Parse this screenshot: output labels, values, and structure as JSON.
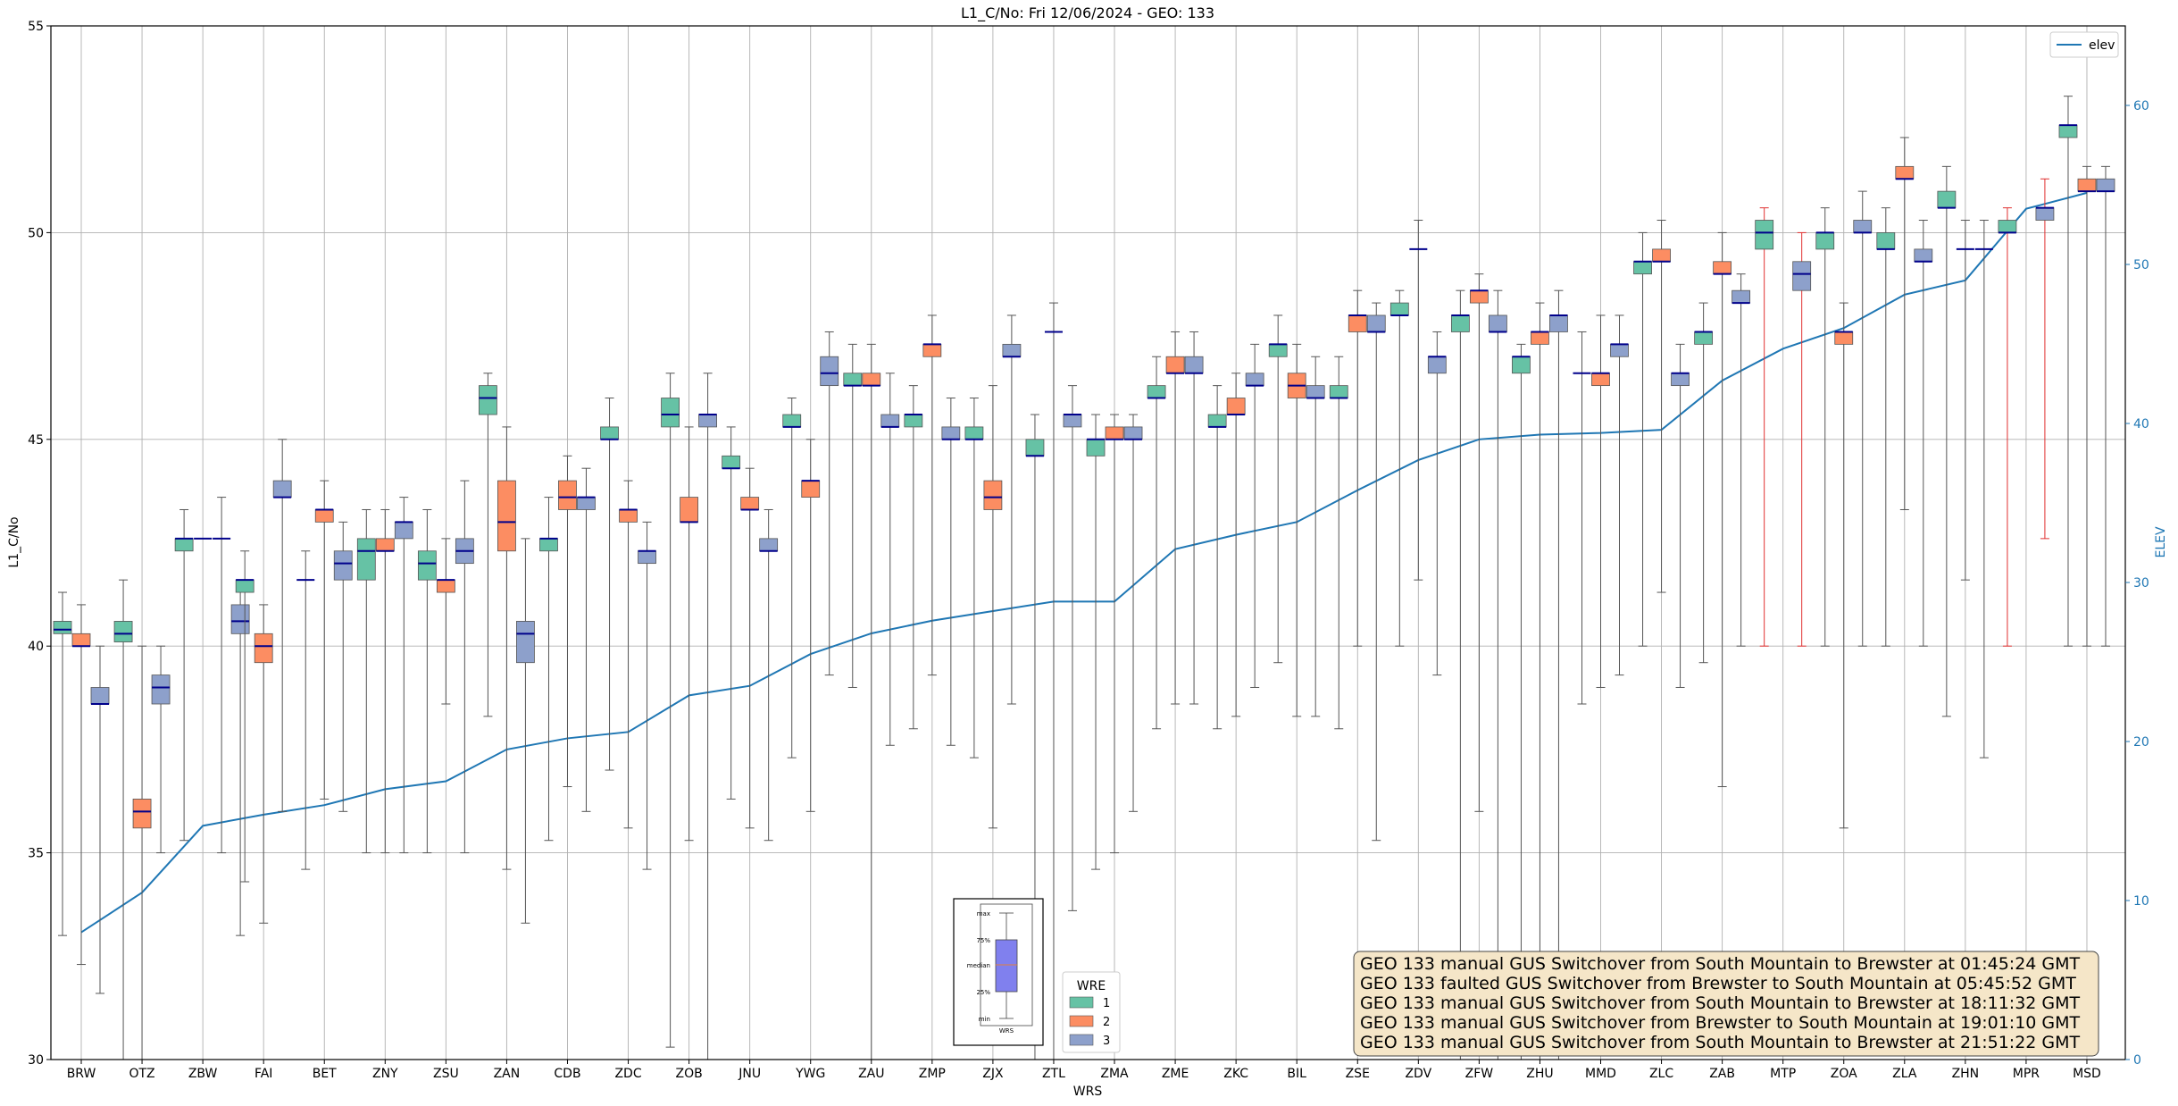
{
  "chart_data": {
    "type": "box",
    "title": "L1_C/No: Fri 12/06/2024 - GEO: 133",
    "xlabel": "WRS",
    "ylabel": "L1_C/No",
    "y2label": "ELEV",
    "ylim": [
      30,
      55
    ],
    "y2lim": [
      0,
      65
    ],
    "yticks": [
      "30",
      "35",
      "40",
      "45",
      "50",
      "55"
    ],
    "y2ticks": [
      "0",
      "10",
      "20",
      "30",
      "40",
      "50",
      "60"
    ],
    "grid": true,
    "stations": [
      "BRW",
      "OTZ",
      "ZBW",
      "FAI",
      "BET",
      "ZNY",
      "ZSU",
      "ZAN",
      "CDB",
      "ZDC",
      "ZOB",
      "JNU",
      "YWG",
      "ZAU",
      "ZMP",
      "ZJX",
      "ZTL",
      "ZMA",
      "ZME",
      "ZKC",
      "BIL",
      "ZSE",
      "ZDV",
      "ZFW",
      "ZHU",
      "MMD",
      "ZLC",
      "ZAB",
      "MTP",
      "ZOA",
      "ZLA",
      "ZHN",
      "MPR",
      "MSD"
    ],
    "elev_series": {
      "name": "elev",
      "color": "#1f77b4",
      "values": [
        8,
        10.5,
        14.7,
        15.4,
        16,
        17,
        17.5,
        19.5,
        20.2,
        20.6,
        22.9,
        23.5,
        25.5,
        26.8,
        27.6,
        28.2,
        28.8,
        28.8,
        32.1,
        33.0,
        33.8,
        35.8,
        37.7,
        39,
        39.3,
        39.4,
        39.6,
        42.7,
        44.7,
        46.0,
        48.1,
        49,
        53.5,
        54.5
      ]
    },
    "wre_legend": {
      "title": "WRE",
      "entries": [
        {
          "label": "1",
          "color": "#66c2a5"
        },
        {
          "label": "2",
          "color": "#fc8d62"
        },
        {
          "label": "3",
          "color": "#8da0cb"
        }
      ]
    },
    "series_legend": {
      "label": "elev"
    },
    "box_key": {
      "labels": [
        "max",
        "75%",
        "median",
        "25%",
        "min"
      ],
      "xlabel": "WRS"
    },
    "boxes": [
      {
        "wrs": "BRW",
        "wre": 1,
        "q1": 40.3,
        "med": 40.4,
        "q3": 40.6,
        "min": 33,
        "max": 41.3
      },
      {
        "wrs": "BRW",
        "wre": 2,
        "q1": 40,
        "med": 40,
        "q3": 40.3,
        "min": 32.3,
        "max": 41
      },
      {
        "wrs": "BRW",
        "wre": 3,
        "q1": 38.6,
        "med": 38.6,
        "q3": 39,
        "min": 31.6,
        "max": 40
      },
      {
        "wrs": "OTZ",
        "wre": 1,
        "q1": 40.1,
        "med": 40.3,
        "q3": 40.6,
        "min": 30,
        "max": 41.6
      },
      {
        "wrs": "OTZ",
        "wre": 2,
        "q1": 35.6,
        "med": 36,
        "q3": 36.3,
        "min": 30,
        "max": 40
      },
      {
        "wrs": "OTZ",
        "wre": 3,
        "q1": 38.6,
        "med": 39,
        "q3": 39.3,
        "min": 35,
        "max": 40
      },
      {
        "wrs": "ZBW",
        "wre": 1,
        "q1": 42.3,
        "med": 42.6,
        "q3": 42.6,
        "min": 35.3,
        "max": 43.3
      },
      {
        "wrs": "ZBW",
        "wre": 2,
        "q1": null,
        "med": 42.6,
        "q3": null,
        "min": null,
        "max": null
      },
      {
        "wrs": "ZBW",
        "wre": 3,
        "q1": null,
        "med": 42.6,
        "q3": null,
        "min": 35,
        "max": 43.6
      },
      {
        "wrs": "ZBW",
        "wre": 3,
        "q1": 40.3,
        "med": 40.6,
        "q3": 41,
        "min": 33,
        "max": 41.6
      },
      {
        "wrs": "FAI",
        "wre": 1,
        "q1": 41.3,
        "med": 41.6,
        "q3": 41.6,
        "min": 34.3,
        "max": 42.3
      },
      {
        "wrs": "FAI",
        "wre": 2,
        "q1": 39.6,
        "med": 40,
        "q3": 40.3,
        "min": 33.3,
        "max": 41
      },
      {
        "wrs": "FAI",
        "wre": 3,
        "q1": 43.6,
        "med": 43.6,
        "q3": 44,
        "min": 36,
        "max": 45
      },
      {
        "wrs": "BET",
        "wre": 1,
        "q1": null,
        "med": 41.6,
        "q3": null,
        "min": 34.6,
        "max": 42.3
      },
      {
        "wrs": "BET",
        "wre": 2,
        "q1": 43,
        "med": 43.3,
        "q3": 43.3,
        "min": 36.3,
        "max": 44
      },
      {
        "wrs": "BET",
        "wre": 3,
        "q1": 41.6,
        "med": 42,
        "q3": 42.3,
        "min": 36,
        "max": 43
      },
      {
        "wrs": "ZNY",
        "wre": 1,
        "q1": 41.6,
        "med": 42.3,
        "q3": 42.6,
        "min": 35,
        "max": 43.3
      },
      {
        "wrs": "ZNY",
        "wre": 2,
        "q1": 42.3,
        "med": 42.3,
        "q3": 42.6,
        "min": 35,
        "max": 43.3
      },
      {
        "wrs": "ZNY",
        "wre": 3,
        "q1": 42.6,
        "med": 43,
        "q3": 43,
        "min": 35,
        "max": 43.6
      },
      {
        "wrs": "ZSU",
        "wre": 1,
        "q1": 41.6,
        "med": 42,
        "q3": 42.3,
        "min": 35,
        "max": 43.3
      },
      {
        "wrs": "ZSU",
        "wre": 2,
        "q1": 41.3,
        "med": 41.6,
        "q3": 41.6,
        "min": 38.6,
        "max": 42.6
      },
      {
        "wrs": "ZSU",
        "wre": 3,
        "q1": 42,
        "med": 42.3,
        "q3": 42.6,
        "min": 35,
        "max": 44
      },
      {
        "wrs": "ZAN",
        "wre": 1,
        "q1": 45.6,
        "med": 46,
        "q3": 46.3,
        "min": 38.3,
        "max": 46.6
      },
      {
        "wrs": "ZAN",
        "wre": 2,
        "q1": 42.3,
        "med": 43,
        "q3": 44,
        "min": 34.6,
        "max": 45.3
      },
      {
        "wrs": "ZAN",
        "wre": 3,
        "q1": 39.6,
        "med": 40.3,
        "q3": 40.6,
        "min": 33.3,
        "max": 42.6
      },
      {
        "wrs": "CDB",
        "wre": 1,
        "q1": 42.3,
        "med": 42.6,
        "q3": 42.6,
        "min": 35.3,
        "max": 43.6
      },
      {
        "wrs": "CDB",
        "wre": 2,
        "q1": 43.3,
        "med": 43.6,
        "q3": 44,
        "min": 36.6,
        "max": 44.6
      },
      {
        "wrs": "CDB",
        "wre": 3,
        "q1": 43.3,
        "med": 43.6,
        "q3": 43.6,
        "min": 36,
        "max": 44.3
      },
      {
        "wrs": "ZDC",
        "wre": 1,
        "q1": 45,
        "med": 45,
        "q3": 45.3,
        "min": 37,
        "max": 46
      },
      {
        "wrs": "ZDC",
        "wre": 2,
        "q1": 43,
        "med": 43.3,
        "q3": 43.3,
        "min": 35.6,
        "max": 44
      },
      {
        "wrs": "ZDC",
        "wre": 3,
        "q1": 42,
        "med": 42.3,
        "q3": 42.3,
        "min": 34.6,
        "max": 43
      },
      {
        "wrs": "ZOB",
        "wre": 1,
        "q1": 45.3,
        "med": 45.6,
        "q3": 46,
        "min": 30.3,
        "max": 46.6
      },
      {
        "wrs": "ZOB",
        "wre": 2,
        "q1": 43,
        "med": 43,
        "q3": 43.6,
        "min": 35.3,
        "max": 45.3
      },
      {
        "wrs": "ZOB",
        "wre": 3,
        "q1": 45.3,
        "med": 45.6,
        "q3": 45.6,
        "min": 30,
        "max": 46.6
      },
      {
        "wrs": "JNU",
        "wre": 1,
        "q1": 44.3,
        "med": 44.3,
        "q3": 44.6,
        "min": 36.3,
        "max": 45.3
      },
      {
        "wrs": "JNU",
        "wre": 2,
        "q1": 43.3,
        "med": 43.3,
        "q3": 43.6,
        "min": 35.6,
        "max": 44.3
      },
      {
        "wrs": "JNU",
        "wre": 3,
        "q1": 42.3,
        "med": 42.3,
        "q3": 42.6,
        "min": 35.3,
        "max": 43.3
      },
      {
        "wrs": "YWG",
        "wre": 1,
        "q1": 45.3,
        "med": 45.3,
        "q3": 45.6,
        "min": 37.3,
        "max": 46
      },
      {
        "wrs": "YWG",
        "wre": 2,
        "q1": 43.6,
        "med": 44,
        "q3": 44,
        "min": 36,
        "max": 45
      },
      {
        "wrs": "YWG",
        "wre": 3,
        "q1": 46.3,
        "med": 46.6,
        "q3": 47,
        "min": 39.3,
        "max": 47.6
      },
      {
        "wrs": "ZAU",
        "wre": 1,
        "q1": 46.3,
        "med": 46.3,
        "q3": 46.6,
        "min": 39,
        "max": 47.3
      },
      {
        "wrs": "ZAU",
        "wre": 2,
        "q1": 46.3,
        "med": 46.3,
        "q3": 46.6,
        "min": 30,
        "max": 47.3
      },
      {
        "wrs": "ZAU",
        "wre": 3,
        "q1": 45.3,
        "med": 45.3,
        "q3": 45.6,
        "min": 37.6,
        "max": 46.6
      },
      {
        "wrs": "ZMP",
        "wre": 1,
        "q1": 45.3,
        "med": 45.6,
        "q3": 45.6,
        "min": 38,
        "max": 46.3
      },
      {
        "wrs": "ZMP",
        "wre": 2,
        "q1": 47,
        "med": 47.3,
        "q3": 47.3,
        "min": 39.3,
        "max": 48
      },
      {
        "wrs": "ZMP",
        "wre": 3,
        "q1": 45,
        "med": 45,
        "q3": 45.3,
        "min": 37.6,
        "max": 46
      },
      {
        "wrs": "ZJX",
        "wre": 1,
        "q1": 45,
        "med": 45,
        "q3": 45.3,
        "min": 37.3,
        "max": 46
      },
      {
        "wrs": "ZJX",
        "wre": 2,
        "q1": 43.3,
        "med": 43.6,
        "q3": 44,
        "min": 35.6,
        "max": 46.3
      },
      {
        "wrs": "ZJX",
        "wre": 3,
        "q1": 47,
        "med": 47,
        "q3": 47.3,
        "min": 38.6,
        "max": 48
      },
      {
        "wrs": "ZTL",
        "wre": 1,
        "q1": 44.6,
        "med": 44.6,
        "q3": 45,
        "min": 30,
        "max": 45.6
      },
      {
        "wrs": "ZTL",
        "wre": 2,
        "q1": null,
        "med": 47.6,
        "q3": null,
        "min": 30,
        "max": 48.3
      },
      {
        "wrs": "ZTL",
        "wre": 3,
        "q1": 45.3,
        "med": 45.6,
        "q3": 45.6,
        "min": 33.6,
        "max": 46.3
      },
      {
        "wrs": "ZMA",
        "wre": 1,
        "q1": 44.6,
        "med": 45,
        "q3": 45,
        "min": 34.6,
        "max": 45.6
      },
      {
        "wrs": "ZMA",
        "wre": 2,
        "q1": 45,
        "med": 45,
        "q3": 45.3,
        "min": 35,
        "max": 45.6
      },
      {
        "wrs": "ZMA",
        "wre": 3,
        "q1": 45,
        "med": 45,
        "q3": 45.3,
        "min": 36,
        "max": 45.6
      },
      {
        "wrs": "ZME",
        "wre": 1,
        "q1": 46,
        "med": 46,
        "q3": 46.3,
        "min": 38,
        "max": 47
      },
      {
        "wrs": "ZME",
        "wre": 2,
        "q1": 46.6,
        "med": 46.6,
        "q3": 47,
        "min": 38.6,
        "max": 47.6
      },
      {
        "wrs": "ZME",
        "wre": 3,
        "q1": 46.6,
        "med": 46.6,
        "q3": 47,
        "min": 38.6,
        "max": 47.6
      },
      {
        "wrs": "ZKC",
        "wre": 1,
        "q1": 45.3,
        "med": 45.3,
        "q3": 45.6,
        "min": 38,
        "max": 46.3
      },
      {
        "wrs": "ZKC",
        "wre": 2,
        "q1": 45.6,
        "med": 45.6,
        "q3": 46,
        "min": 38.3,
        "max": 46.6
      },
      {
        "wrs": "ZKC",
        "wre": 3,
        "q1": 46.3,
        "med": 46.3,
        "q3": 46.6,
        "min": 39,
        "max": 47.3
      },
      {
        "wrs": "BIL",
        "wre": 1,
        "q1": 47,
        "med": 47.3,
        "q3": 47.3,
        "min": 39.6,
        "max": 48
      },
      {
        "wrs": "BIL",
        "wre": 2,
        "q1": 46,
        "med": 46.3,
        "q3": 46.6,
        "min": 38.3,
        "max": 47.3
      },
      {
        "wrs": "BIL",
        "wre": 3,
        "q1": 46,
        "med": 46,
        "q3": 46.3,
        "min": 38.3,
        "max": 47
      },
      {
        "wrs": "ZSE",
        "wre": 1,
        "q1": 46,
        "med": 46,
        "q3": 46.3,
        "min": 38,
        "max": 47
      },
      {
        "wrs": "ZSE",
        "wre": 2,
        "q1": 47.6,
        "med": 48,
        "q3": 48,
        "min": 40,
        "max": 48.6
      },
      {
        "wrs": "ZSE",
        "wre": 3,
        "q1": 47.6,
        "med": 47.6,
        "q3": 48,
        "min": 35.3,
        "max": 48.3
      },
      {
        "wrs": "ZDV",
        "wre": 1,
        "q1": 48,
        "med": 48,
        "q3": 48.3,
        "min": 40,
        "max": 48.6
      },
      {
        "wrs": "ZDV",
        "wre": 2,
        "q1": null,
        "med": 49.6,
        "q3": null,
        "min": 41.6,
        "max": 50.3
      },
      {
        "wrs": "ZDV",
        "wre": 3,
        "q1": 46.6,
        "med": 47,
        "q3": 47,
        "min": 39.3,
        "max": 47.6
      },
      {
        "wrs": "ZFW",
        "wre": 1,
        "q1": 47.6,
        "med": 48,
        "q3": 48,
        "min": 30,
        "max": 48.6
      },
      {
        "wrs": "ZFW",
        "wre": 2,
        "q1": 48.3,
        "med": 48.6,
        "q3": 48.6,
        "min": 36,
        "max": 49
      },
      {
        "wrs": "ZFW",
        "wre": 3,
        "q1": 47.6,
        "med": 47.6,
        "q3": 48,
        "min": 30,
        "max": 48.6
      },
      {
        "wrs": "ZHU",
        "wre": 1,
        "q1": 46.6,
        "med": 47,
        "q3": 47,
        "min": 30,
        "max": 47.3
      },
      {
        "wrs": "ZHU",
        "wre": 2,
        "q1": 47.3,
        "med": 47.6,
        "q3": 47.6,
        "min": 30,
        "max": 48.3
      },
      {
        "wrs": "ZHU",
        "wre": 3,
        "q1": 47.6,
        "med": 48,
        "q3": 48,
        "min": 30,
        "max": 48.6
      },
      {
        "wrs": "MMD",
        "wre": 1,
        "q1": null,
        "med": 46.6,
        "q3": null,
        "min": 38.6,
        "max": 47.6
      },
      {
        "wrs": "MMD",
        "wre": 2,
        "q1": 46.3,
        "med": 46.6,
        "q3": 46.6,
        "min": 39,
        "max": 48
      },
      {
        "wrs": "MMD",
        "wre": 3,
        "q1": 47,
        "med": 47.3,
        "q3": 47.3,
        "min": 39.3,
        "max": 48
      },
      {
        "wrs": "ZLC",
        "wre": 1,
        "q1": 49,
        "med": 49.3,
        "q3": 49.3,
        "min": 40,
        "max": 50
      },
      {
        "wrs": "ZLC",
        "wre": 2,
        "q1": 49.3,
        "med": 49.3,
        "q3": 49.6,
        "min": 41.3,
        "max": 50.3
      },
      {
        "wrs": "ZLC",
        "wre": 3,
        "q1": 46.3,
        "med": 46.6,
        "q3": 46.6,
        "min": 39,
        "max": 47.3
      },
      {
        "wrs": "ZAB",
        "wre": 1,
        "q1": 47.3,
        "med": 47.6,
        "q3": 47.6,
        "min": 39.6,
        "max": 48.3
      },
      {
        "wrs": "ZAB",
        "wre": 2,
        "q1": 49,
        "med": 49,
        "q3": 49.3,
        "min": 36.6,
        "max": 50
      },
      {
        "wrs": "ZAB",
        "wre": 3,
        "q1": 48.3,
        "med": 48.3,
        "q3": 48.6,
        "min": 40,
        "max": 49
      },
      {
        "wrs": "MTP",
        "wre": 1,
        "q1": 49.6,
        "med": 50,
        "q3": 50.3,
        "min": 40,
        "max": 50.6,
        "outlier_red": true
      },
      {
        "wrs": "MTP",
        "wre": 3,
        "q1": 48.6,
        "med": 49,
        "q3": 49.3,
        "min": 40,
        "max": 50,
        "outlier_red": true
      },
      {
        "wrs": "ZOA",
        "wre": 1,
        "q1": 49.6,
        "med": 50,
        "q3": 50,
        "min": 40,
        "max": 50.6
      },
      {
        "wrs": "ZOA",
        "wre": 2,
        "q1": 47.3,
        "med": 47.6,
        "q3": 47.6,
        "min": 35.6,
        "max": 48.3
      },
      {
        "wrs": "ZOA",
        "wre": 3,
        "q1": 50,
        "med": 50,
        "q3": 50.3,
        "min": 40,
        "max": 51
      },
      {
        "wrs": "ZLA",
        "wre": 1,
        "q1": 49.6,
        "med": 49.6,
        "q3": 50,
        "min": 40,
        "max": 50.6
      },
      {
        "wrs": "ZLA",
        "wre": 2,
        "q1": 51.3,
        "med": 51.3,
        "q3": 51.6,
        "min": 43.3,
        "max": 52.3
      },
      {
        "wrs": "ZLA",
        "wre": 3,
        "q1": 49.3,
        "med": 49.3,
        "q3": 49.6,
        "min": 40,
        "max": 50.3
      },
      {
        "wrs": "ZHN",
        "wre": 1,
        "q1": 50.6,
        "med": 50.6,
        "q3": 51,
        "min": 38.3,
        "max": 51.6
      },
      {
        "wrs": "ZHN",
        "wre": 2,
        "q1": null,
        "med": 49.6,
        "q3": null,
        "min": 41.6,
        "max": 50.3
      },
      {
        "wrs": "ZHN",
        "wre": 3,
        "q1": null,
        "med": 49.6,
        "q3": null,
        "min": 37.3,
        "max": 50.3
      },
      {
        "wrs": "MPR",
        "wre": 1,
        "q1": 50,
        "med": 50,
        "q3": 50.3,
        "min": 40,
        "max": 50.6,
        "outlier_red": true
      },
      {
        "wrs": "MPR",
        "wre": 3,
        "q1": 50.3,
        "med": 50.6,
        "q3": 50.6,
        "min": 42.6,
        "max": 51.3,
        "outlier_red": true
      },
      {
        "wrs": "MSD",
        "wre": 1,
        "q1": 52.3,
        "med": 52.6,
        "q3": 52.6,
        "min": 40,
        "max": 53.3
      },
      {
        "wrs": "MSD",
        "wre": 2,
        "q1": 51,
        "med": 51,
        "q3": 51.3,
        "min": 40,
        "max": 51.6
      },
      {
        "wrs": "MSD",
        "wre": 3,
        "q1": 51,
        "med": 51,
        "q3": 51.3,
        "min": 40,
        "max": 51.6
      }
    ],
    "annotations": [
      "GEO 133 manual GUS Switchover from South Mountain to Brewster at 01:45:24 GMT",
      "GEO 133 faulted GUS Switchover from Brewster to South Mountain at 05:45:52 GMT",
      "GEO 133 manual GUS Switchover from South Mountain to Brewster at 18:11:32 GMT",
      "GEO 133 manual GUS Switchover from Brewster to South Mountain at 19:01:10 GMT",
      "GEO 133 manual GUS Switchover from South Mountain to Brewster at 21:51:22 GMT"
    ]
  }
}
